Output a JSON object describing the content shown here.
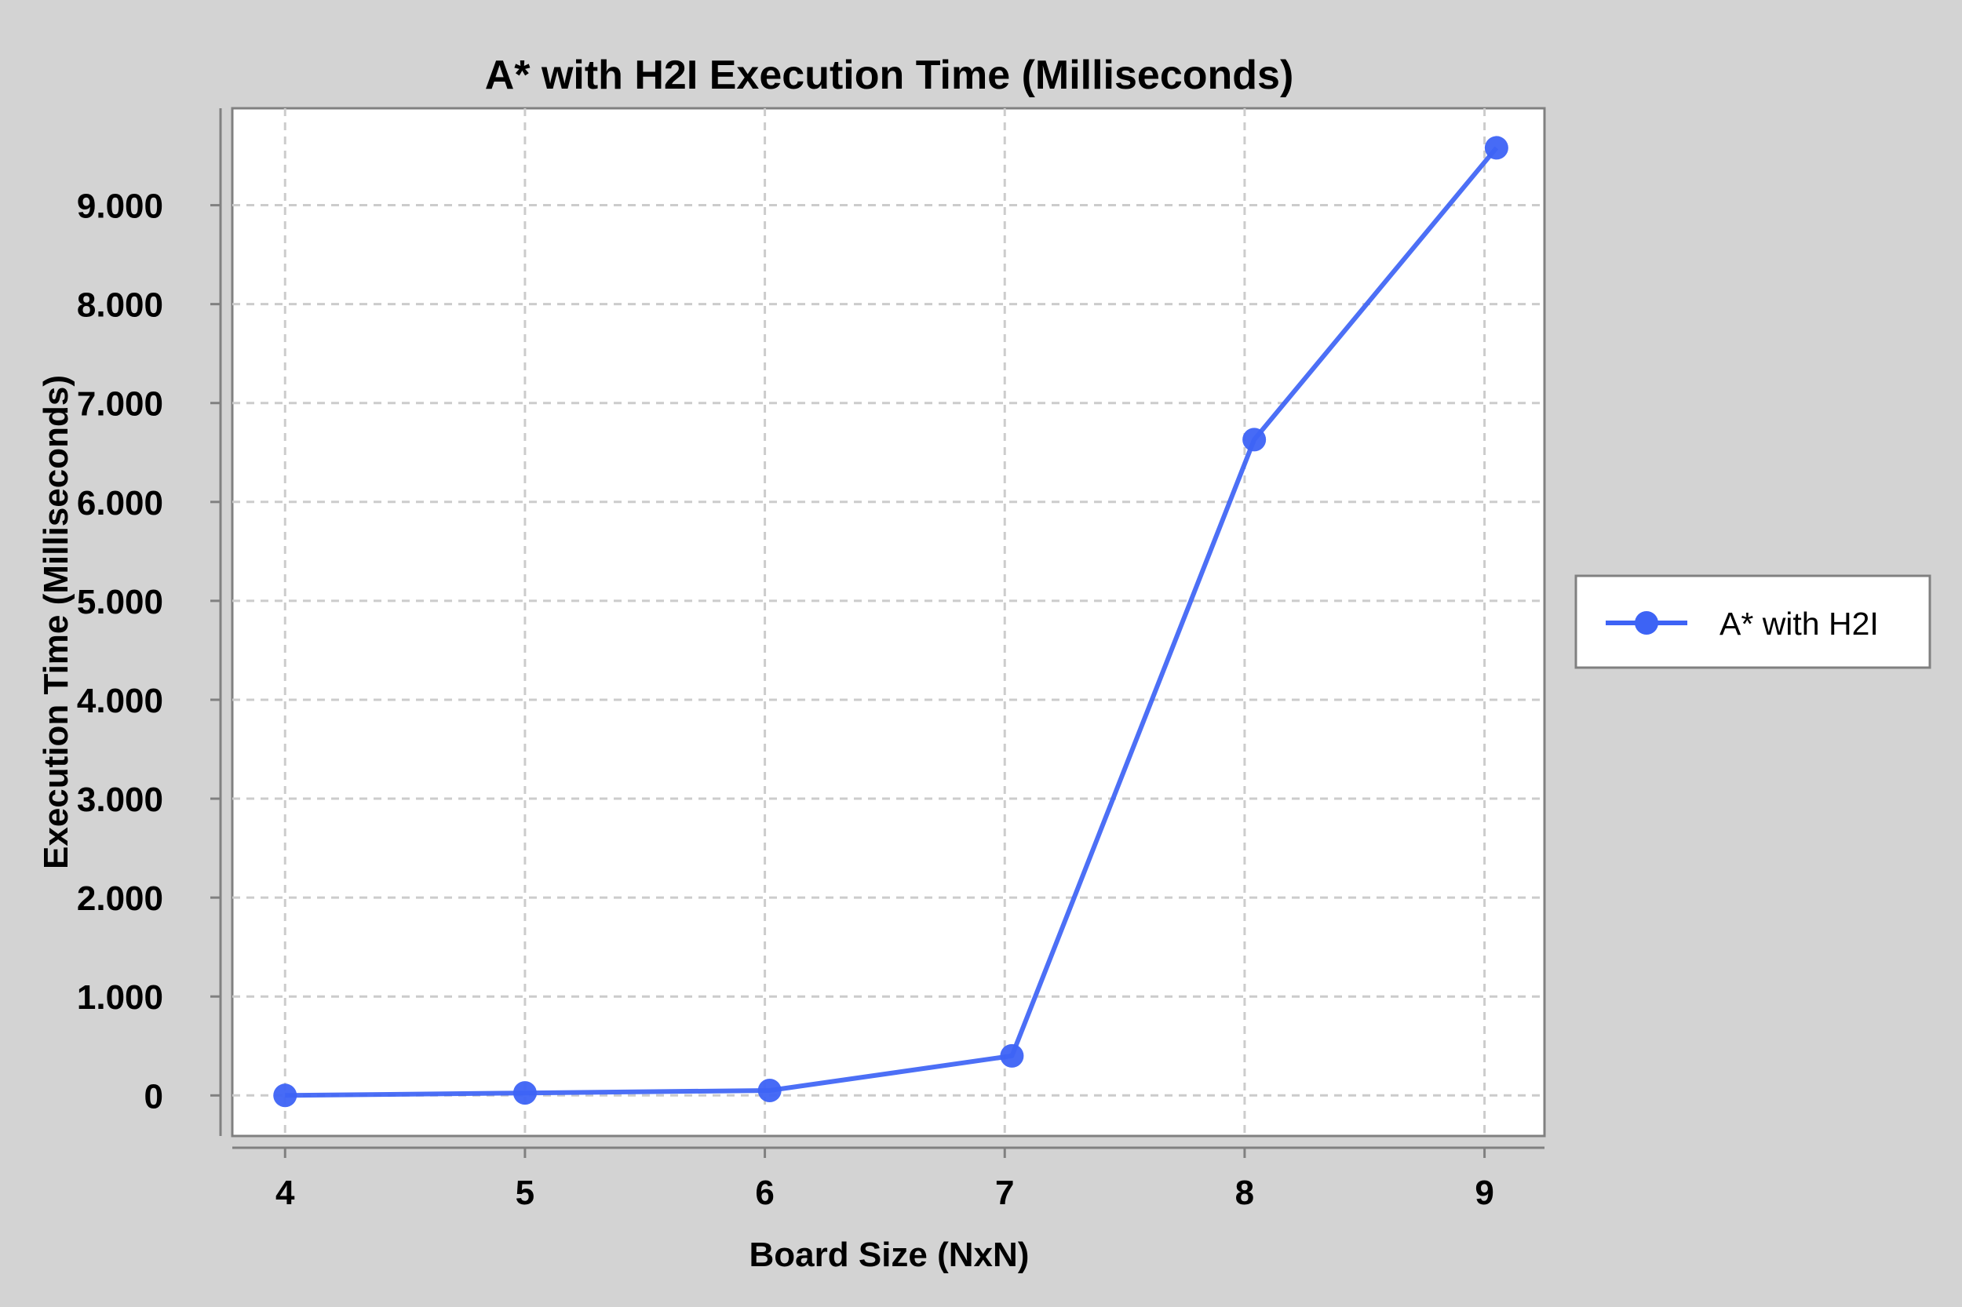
{
  "chart_data": {
    "type": "line",
    "title": "A* with H2I Execution Time (Milliseconds)",
    "xlabel": "Board Size (NxN)",
    "ylabel": "Execution Time (Milliseconds)",
    "x": [
      4,
      5,
      6,
      7,
      8,
      9
    ],
    "x_tick_labels": [
      "4",
      "5",
      "6",
      "7",
      "8",
      "9"
    ],
    "xlim": [
      3.78,
      9.25
    ],
    "y_ticks": [
      0,
      1000,
      2000,
      3000,
      4000,
      5000,
      6000,
      7000,
      8000,
      9000
    ],
    "y_tick_labels": [
      "0",
      "1.000",
      "2.000",
      "3.000",
      "4.000",
      "5.000",
      "6.000",
      "7.000",
      "8.000",
      "9.000"
    ],
    "ylim": [
      -410,
      9980
    ],
    "grid": true,
    "legend_position": "right",
    "series": [
      {
        "name": "A* with H2I",
        "x": [
          4,
          5,
          6.02,
          7.03,
          8.04,
          9.05
        ],
        "values": [
          0,
          25,
          50,
          400,
          6630,
          9580
        ],
        "color": "#3d63f5"
      }
    ]
  }
}
